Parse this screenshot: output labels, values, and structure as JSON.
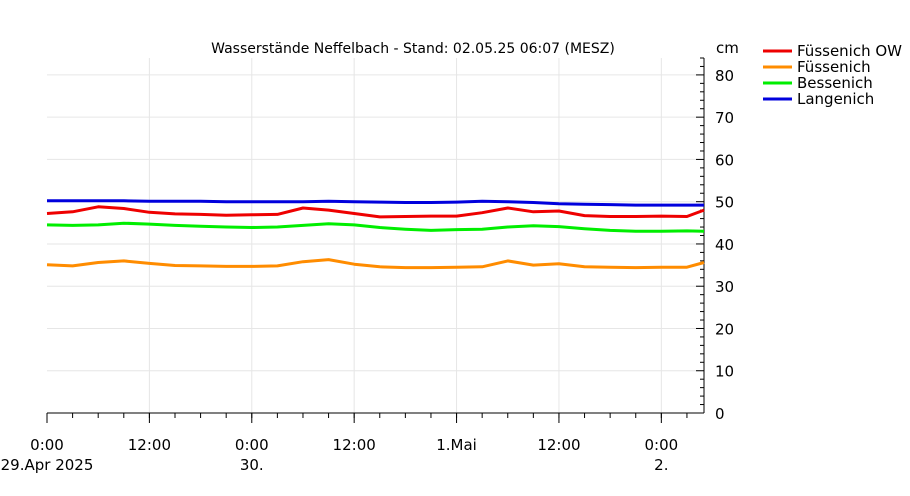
{
  "chart_data": {
    "type": "line",
    "title": "Wasserstände Neffelbach - Stand: 02.05.25 06:07 (MESZ)",
    "ylabel": "cm",
    "xlabel": "",
    "ylim": [
      0,
      84
    ],
    "yticks": [
      0,
      10,
      20,
      30,
      40,
      50,
      60,
      70,
      80
    ],
    "xlim": [
      "2025-04-29 00:00",
      "2025-05-02 05:00"
    ],
    "grid": true,
    "legend_position": "top-right",
    "x_tick_labels": [
      {
        "x": "2025-04-29 00:00",
        "line1": "0:00",
        "line2": "29.Apr 2025"
      },
      {
        "x": "2025-04-29 12:00",
        "line1": "12:00",
        "line2": ""
      },
      {
        "x": "2025-04-30 00:00",
        "line1": "0:00",
        "line2": "30."
      },
      {
        "x": "2025-04-30 12:00",
        "line1": "12:00",
        "line2": ""
      },
      {
        "x": "2025-05-01 00:00",
        "line1": "1.Mai",
        "line2": ""
      },
      {
        "x": "2025-05-01 12:00",
        "line1": "12:00",
        "line2": ""
      },
      {
        "x": "2025-05-02 00:00",
        "line1": "0:00",
        "line2": "2."
      }
    ],
    "x": [
      "2025-04-29 00:00",
      "2025-04-29 03:00",
      "2025-04-29 06:00",
      "2025-04-29 09:00",
      "2025-04-29 12:00",
      "2025-04-29 15:00",
      "2025-04-29 18:00",
      "2025-04-29 21:00",
      "2025-04-30 00:00",
      "2025-04-30 03:00",
      "2025-04-30 06:00",
      "2025-04-30 09:00",
      "2025-04-30 12:00",
      "2025-04-30 15:00",
      "2025-04-30 18:00",
      "2025-04-30 21:00",
      "2025-05-01 00:00",
      "2025-05-01 03:00",
      "2025-05-01 06:00",
      "2025-05-01 09:00",
      "2025-05-01 12:00",
      "2025-05-01 15:00",
      "2025-05-01 18:00",
      "2025-05-01 21:00",
      "2025-05-02 00:00",
      "2025-05-02 03:00",
      "2025-05-02 05:00"
    ],
    "series": [
      {
        "name": "Füssenich OW",
        "color": "#ee0000",
        "values": [
          47.2,
          47.6,
          48.8,
          48.4,
          47.5,
          47.1,
          47.0,
          46.8,
          46.9,
          47.0,
          48.5,
          48.0,
          47.2,
          46.4,
          46.5,
          46.6,
          46.6,
          47.4,
          48.5,
          47.6,
          47.8,
          46.7,
          46.5,
          46.5,
          46.6,
          46.5,
          48.0
        ]
      },
      {
        "name": "Füssenich",
        "color": "#ff8c00",
        "values": [
          35.1,
          34.8,
          35.6,
          36.0,
          35.4,
          34.9,
          34.8,
          34.7,
          34.7,
          34.8,
          35.8,
          36.3,
          35.2,
          34.6,
          34.4,
          34.4,
          34.5,
          34.6,
          36.0,
          35.0,
          35.3,
          34.6,
          34.5,
          34.4,
          34.5,
          34.5,
          35.6
        ]
      },
      {
        "name": "Bessenich",
        "color": "#00ee00",
        "values": [
          44.5,
          44.4,
          44.5,
          44.9,
          44.7,
          44.4,
          44.2,
          44.0,
          43.9,
          44.0,
          44.4,
          44.8,
          44.5,
          43.9,
          43.5,
          43.2,
          43.4,
          43.5,
          44.0,
          44.3,
          44.1,
          43.6,
          43.2,
          43.0,
          43.0,
          43.1,
          43.0
        ]
      },
      {
        "name": "Langenich",
        "color": "#0000dd",
        "values": [
          50.2,
          50.2,
          50.2,
          50.2,
          50.1,
          50.1,
          50.1,
          50.0,
          50.0,
          50.0,
          50.0,
          50.1,
          50.0,
          49.9,
          49.8,
          49.8,
          49.9,
          50.1,
          50.0,
          49.8,
          49.5,
          49.4,
          49.3,
          49.2,
          49.2,
          49.2,
          49.2
        ]
      }
    ]
  }
}
